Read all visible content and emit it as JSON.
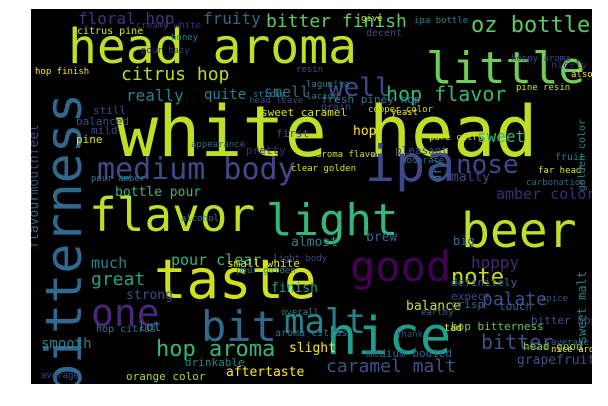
{
  "words": [
    {
      "text": "white head",
      "color": "#bddf26"
    },
    {
      "text": "head aroma",
      "color": "#bddf26"
    },
    {
      "text": "beer",
      "color": "#bddf26"
    },
    {
      "text": "taste",
      "color": "#d0e11c"
    },
    {
      "text": "flavor",
      "color": "#bddf26"
    },
    {
      "text": "light",
      "color": "#35b779"
    },
    {
      "text": "nice",
      "color": "#1f9e89"
    },
    {
      "text": "little",
      "color": "#6ece58"
    },
    {
      "text": "ipa",
      "color": "#3e4989"
    },
    {
      "text": "bit",
      "color": "#31688e"
    },
    {
      "text": "malt",
      "color": "#26828e"
    },
    {
      "text": "good",
      "color": "#440154"
    },
    {
      "text": "one",
      "color": "#482878"
    },
    {
      "text": "medium body",
      "color": "#3e4a89"
    },
    {
      "text": "bitterness",
      "color": "#31688e"
    },
    {
      "text": "hop aroma",
      "color": "#35b779"
    },
    {
      "text": "note",
      "color": "#c8e020"
    },
    {
      "text": "nose",
      "color": "#3e4989"
    },
    {
      "text": "well",
      "color": "#3e4989"
    },
    {
      "text": "hop flavor",
      "color": "#35b779"
    },
    {
      "text": "oz bottle",
      "color": "#5ec962"
    },
    {
      "text": "bitter finish",
      "color": "#5ec962"
    },
    {
      "text": "citrus hop",
      "color": "#b5de2b"
    },
    {
      "text": "caramel malt",
      "color": "#3b528b"
    },
    {
      "text": "bitter",
      "color": "#3b528b"
    },
    {
      "text": "palate",
      "color": "#3b528b"
    },
    {
      "text": "floral hop",
      "color": "#46327e"
    },
    {
      "text": "fruity",
      "color": "#31688e"
    },
    {
      "text": "really",
      "color": "#26828e"
    },
    {
      "text": "quite",
      "color": "#26828e"
    },
    {
      "text": "smell",
      "color": "#31688e"
    },
    {
      "text": "great",
      "color": "#20a486"
    },
    {
      "text": "bottle pour",
      "color": "#38b977"
    },
    {
      "text": "pour clear",
      "color": "#35b779"
    },
    {
      "text": "much",
      "color": "#26828e"
    },
    {
      "text": "sweet",
      "color": "#35b779"
    },
    {
      "text": "malty",
      "color": "#3e4989"
    },
    {
      "text": "amber color",
      "color": "#482878"
    },
    {
      "text": "hoppy",
      "color": "#482878"
    },
    {
      "text": "balance",
      "color": "#c8e020"
    },
    {
      "text": "finish",
      "color": "#1f9e89"
    },
    {
      "text": "mouthfeel",
      "color": "#3b528b"
    },
    {
      "text": "flavour",
      "color": "#31688e"
    },
    {
      "text": "smooth",
      "color": "#26828e"
    },
    {
      "text": "aftertaste",
      "color": "#fde725"
    },
    {
      "text": "slight",
      "color": "#fde725"
    },
    {
      "text": "almost",
      "color": "#26828e"
    },
    {
      "text": "brew",
      "color": "#31688e"
    },
    {
      "text": "strong",
      "color": "#3b528b"
    },
    {
      "text": "lot",
      "color": "#26828e"
    },
    {
      "text": "hop",
      "color": "#fde725"
    },
    {
      "text": "dry",
      "color": "#31688e"
    },
    {
      "text": "grapefruit",
      "color": "#3b528b"
    },
    {
      "text": "big",
      "color": "#31688e"
    },
    {
      "text": "sweet malt",
      "color": "#26828e"
    },
    {
      "text": "orange color",
      "color": "#9fda3a"
    },
    {
      "text": "head good",
      "color": "#8fd744"
    },
    {
      "text": "hop bitterness",
      "color": "#5ec962"
    },
    {
      "text": "bitter hop",
      "color": "#3b528b"
    },
    {
      "text": "definitely",
      "color": "#31688e"
    },
    {
      "text": "expect",
      "color": "#3e4989"
    },
    {
      "text": "crisp",
      "color": "#31688e"
    },
    {
      "text": "touch",
      "color": "#31688e"
    },
    {
      "text": "medium bodied",
      "color": "#31688e"
    },
    {
      "text": "drinkable",
      "color": "#26828e"
    },
    {
      "text": "hop citrus",
      "color": "#2a788e"
    },
    {
      "text": "aroma citrus",
      "color": "#2a788e"
    },
    {
      "text": "sweet caramel",
      "color": "#dde318"
    },
    {
      "text": "fresh piney hop",
      "color": "#2a788e"
    },
    {
      "text": "pleasant",
      "color": "#3e4989"
    },
    {
      "text": "small white",
      "color": "#dde318"
    },
    {
      "text": "pine",
      "color": "#dde318"
    },
    {
      "text": "balanced",
      "color": "#3e4989"
    },
    {
      "text": "pretty",
      "color": "#482878"
    },
    {
      "text": "still",
      "color": "#3e4989"
    },
    {
      "text": "mild",
      "color": "#3e4989"
    },
    {
      "text": "first",
      "color": "#3e4989"
    },
    {
      "text": "appearance",
      "color": "#31688e"
    },
    {
      "text": "honey",
      "color": "#26828e"
    },
    {
      "text": "creamy white",
      "color": "#46327e"
    },
    {
      "text": "hop finish",
      "color": "#fde725"
    },
    {
      "text": "pour hazy",
      "color": "#46327e"
    },
    {
      "text": "grain",
      "color": "#3e4989"
    },
    {
      "text": "aroma flavor",
      "color": "#c8e020"
    },
    {
      "text": "copper color",
      "color": "#c8e020"
    },
    {
      "text": "pour amber",
      "color": "#26828e"
    },
    {
      "text": "fruit",
      "color": "#26828e"
    },
    {
      "text": "far head",
      "color": "#dde318"
    },
    {
      "text": "spice",
      "color": "#3b528b"
    },
    {
      "text": "lacing",
      "color": "#26828e"
    },
    {
      "text": "pure citrus",
      "color": "#dde318"
    },
    {
      "text": "moderate",
      "color": "#31688e"
    },
    {
      "text": "head leave",
      "color": "#3e4989"
    },
    {
      "text": "tad",
      "color": "#fde725"
    },
    {
      "text": "earthy",
      "color": "#31688e"
    },
    {
      "text": "golden color",
      "color": "#26828e"
    },
    {
      "text": "citrus pine",
      "color": "#dde318"
    },
    {
      "text": "give",
      "color": "#c8e020"
    },
    {
      "text": "yeast",
      "color": "#fde725"
    },
    {
      "text": "carbonation",
      "color": "#31688e"
    },
    {
      "text": "ipa bottle",
      "color": "#26828e"
    },
    {
      "text": "hoppy aroma",
      "color": "#3e4989"
    },
    {
      "text": "pine resin",
      "color": "#c8e020"
    },
    {
      "text": "thank",
      "color": "#3e4989"
    },
    {
      "text": "alcohol",
      "color": "#26828e"
    },
    {
      "text": "light body",
      "color": "#3e4989"
    },
    {
      "text": "also",
      "color": "#fde725"
    },
    {
      "text": "nicely",
      "color": "#482878"
    },
    {
      "text": "decent",
      "color": "#3e4989"
    },
    {
      "text": "sticky",
      "color": "#26828e"
    },
    {
      "text": "lagunita",
      "color": "#26828e"
    },
    {
      "text": "clear golden",
      "color": "#dde318"
    },
    {
      "text": "pour golden",
      "color": "#26828e"
    },
    {
      "text": "resin",
      "color": "#3e4989"
    },
    {
      "text": "overall",
      "color": "#26828e"
    },
    {
      "text": "average",
      "color": "#3e4989"
    },
    {
      "text": "nice aroma",
      "color": "#fde725"
    },
    {
      "text": "average bitter",
      "color": "#31688e"
    }
  ]
}
